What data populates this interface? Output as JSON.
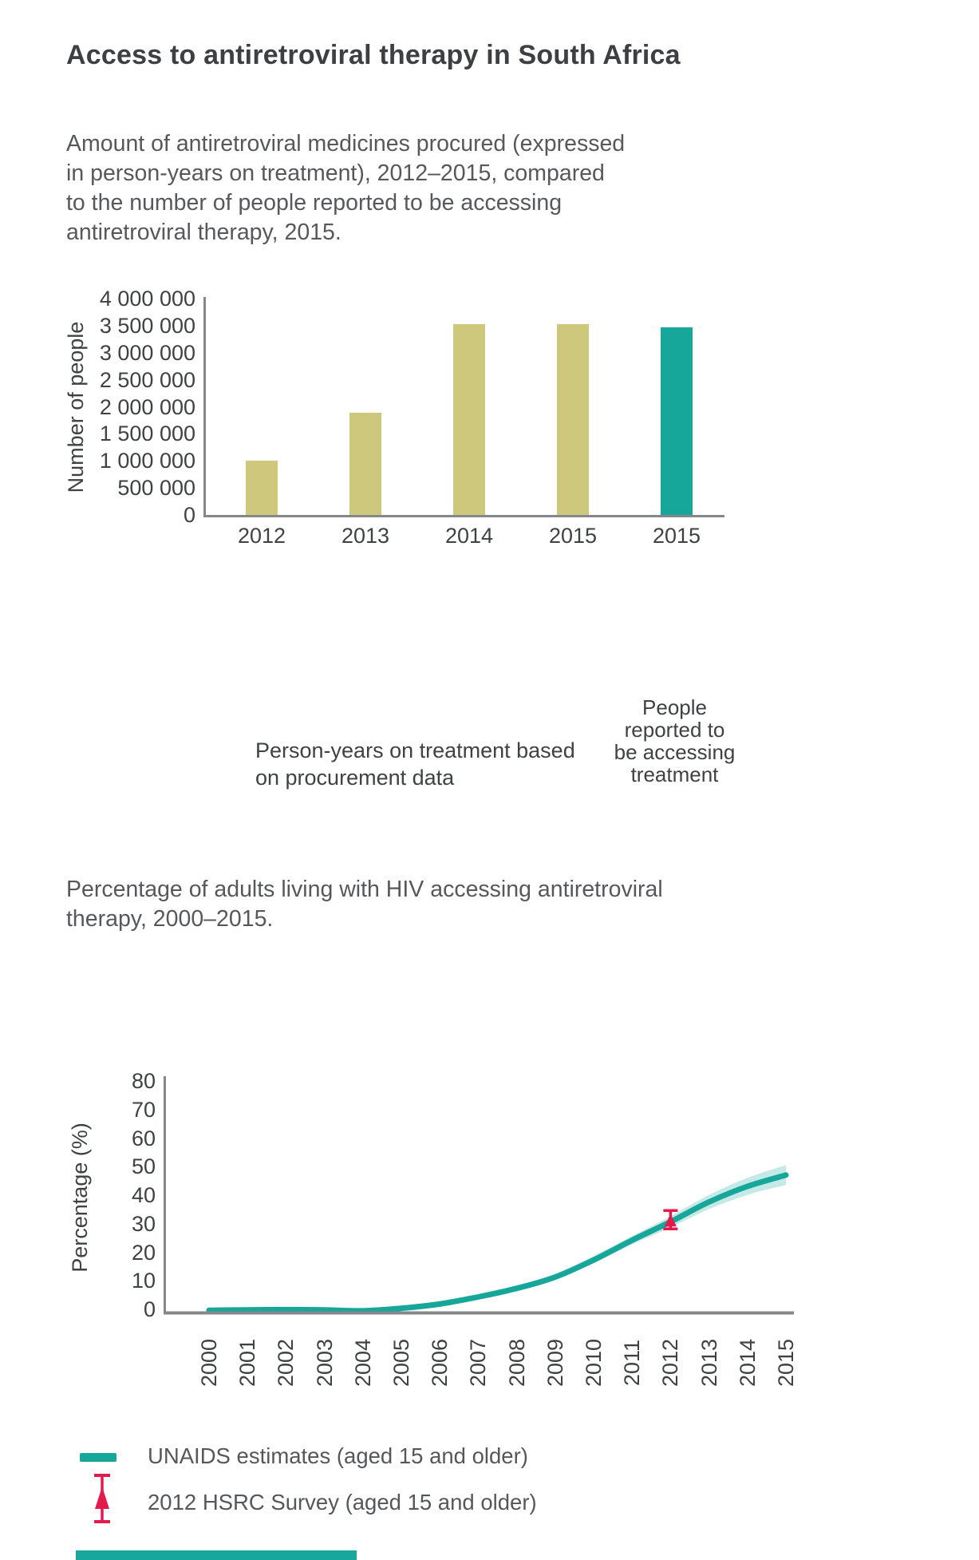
{
  "title": "Access to antiretroviral therapy in South Africa",
  "colors": {
    "khaki": "#cdc87c",
    "teal": "#16a69a",
    "band": "rgba(22,166,154,0.25)",
    "red": "#e31b4d",
    "axis": "#85878a",
    "text_dark": "#3e3f42",
    "text_body": "#57585c"
  },
  "chart1": {
    "subtitle": "Amount of antiretroviral medicines procured (expressed\nin person-years on treatment), 2012–2015, compared\nto the number of people reported to be accessing\nantiretroviral therapy, 2015.",
    "ylabel": "Number of people",
    "yticks": [
      "4 000 000",
      "3 500 000",
      "3 000 000",
      "2 500 000",
      "2 000 000",
      "1 500 000",
      "1 000 000",
      "500 000",
      "0"
    ],
    "group_note": "Person-years on treatment based\non procurement data",
    "highlight_note": "People\nreported to\nbe accessing\ntreatment"
  },
  "chart2": {
    "subtitle": "Percentage of adults living with HIV accessing antiretroviral\ntherapy, 2000–2015.",
    "ylabel": "Percentage (%)",
    "yticks": [
      "80",
      "70",
      "60",
      "50",
      "40",
      "30",
      "20",
      "10",
      "0"
    ]
  },
  "legend": {
    "items": [
      {
        "label": "UNAIDS estimates (aged 15 and older)",
        "swatch": "teal-line"
      },
      {
        "label": "2012 HSRC Survey (aged 15 and older)",
        "swatch": "red-errorbar"
      }
    ]
  },
  "chart_data": [
    {
      "type": "bar",
      "title": "Amount of antiretroviral medicines procured (expressed in person-years on treatment), 2012–2015, compared to the number of people reported to be accessing antiretroviral therapy, 2015.",
      "xlabel": "",
      "ylabel": "Number of people",
      "ylim": [
        0,
        4000000
      ],
      "grid": false,
      "categories": [
        "2012",
        "2013",
        "2014",
        "2015",
        "2015"
      ],
      "values": [
        1000000,
        1870000,
        3500000,
        3500000,
        3450000
      ],
      "bar_groups": [
        "Person-years on treatment based on procurement data",
        "Person-years on treatment based on procurement data",
        "Person-years on treatment based on procurement data",
        "Person-years on treatment based on procurement data",
        "People reported to be accessing treatment"
      ],
      "bar_colors": [
        "#cdc87c",
        "#cdc87c",
        "#cdc87c",
        "#cdc87c",
        "#16a69a"
      ]
    },
    {
      "type": "line",
      "title": "Percentage of adults living with HIV accessing antiretroviral therapy, 2000–2015.",
      "xlabel": "",
      "ylabel": "Percentage (%)",
      "ylim": [
        0,
        80
      ],
      "grid": false,
      "legend_position": "bottom",
      "x": [
        2000,
        2001,
        2002,
        2003,
        2004,
        2005,
        2006,
        2007,
        2008,
        2009,
        2010,
        2011,
        2012,
        2013,
        2014,
        2015
      ],
      "series": [
        {
          "name": "UNAIDS estimates (aged 15 and older)",
          "values": [
            0.8,
            0.9,
            1.0,
            0.9,
            0.6,
            1.5,
            3.0,
            5.5,
            8.5,
            12.5,
            18.5,
            25.5,
            32.0,
            39.0,
            44.5,
            48.5
          ],
          "lower": [
            0.5,
            0.6,
            0.7,
            0.6,
            0.4,
            1.2,
            2.5,
            4.8,
            7.5,
            11.5,
            17.5,
            24.0,
            30.0,
            36.5,
            41.5,
            45.0
          ],
          "upper": [
            1.1,
            1.2,
            1.3,
            1.2,
            0.9,
            1.9,
            3.6,
            6.3,
            9.6,
            13.6,
            20.0,
            27.0,
            34.0,
            41.5,
            47.5,
            52.0
          ]
        },
        {
          "name": "2012 HSRC Survey (aged 15 and older)",
          "points": [
            {
              "x": 2012,
              "y": 32.5,
              "ci_lower": 29.5,
              "ci_upper": 36.0
            }
          ]
        }
      ]
    }
  ]
}
